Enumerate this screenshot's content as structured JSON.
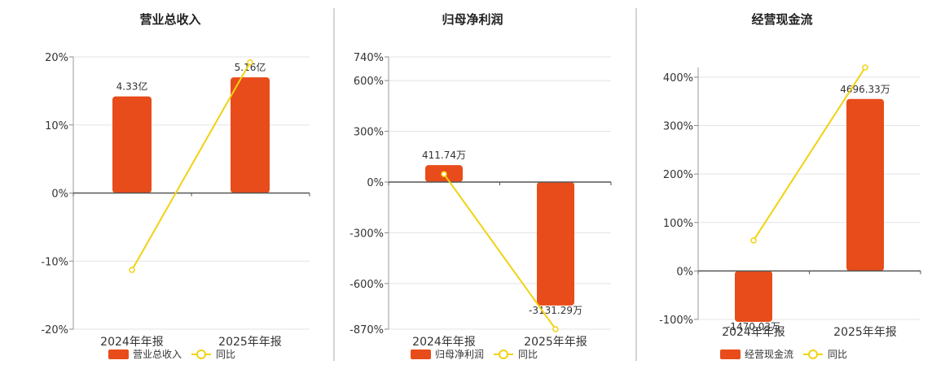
{
  "chart_data": [
    {
      "type": "bar",
      "title": "营业总收入",
      "categories": [
        "2024年年报",
        "2025年年报"
      ],
      "y_ticks": [
        "20%",
        "10%",
        "0%",
        "-10%",
        "-20%"
      ],
      "ylim": [
        -20,
        20
      ],
      "bar_axis": [
        -15.02,
        17.0
      ],
      "series": [
        {
          "name": "营业总收入",
          "kind": "bar",
          "values": [
            14.2,
            17.0
          ],
          "labels": [
            "4.33亿",
            "5.16亿"
          ],
          "color": "#e84c1a"
        },
        {
          "name": "同比",
          "kind": "line",
          "values": [
            -11.3,
            19.2
          ],
          "color": "#f2d211"
        }
      ],
      "legend_position": "bottom"
    },
    {
      "type": "bar",
      "title": "归母净利润",
      "categories": [
        "2024年年报",
        "2025年年报"
      ],
      "y_ticks": [
        "740%",
        "600%",
        "300%",
        "0%",
        "-300%",
        "-600%",
        "-870%"
      ],
      "ylim": [
        -870,
        740
      ],
      "series": [
        {
          "name": "归母净利润",
          "kind": "bar",
          "values": [
            100,
            -730
          ],
          "labels": [
            "411.74万",
            "-3131.29万"
          ],
          "color": "#e84c1a"
        },
        {
          "name": "同比",
          "kind": "line",
          "values": [
            47,
            -870
          ],
          "color": "#f2d211"
        }
      ],
      "legend_position": "bottom"
    },
    {
      "type": "bar",
      "title": "经营现金流",
      "categories": [
        "2024年年报",
        "2025年年报"
      ],
      "y_ticks": [
        "400%",
        "300%",
        "200%",
        "100%",
        "0%",
        "-100%"
      ],
      "ylim": [
        -100,
        420
      ],
      "series": [
        {
          "name": "经营现金流",
          "kind": "bar",
          "values": [
            -105,
            355
          ],
          "labels": [
            "-1470.03万",
            "4696.33万"
          ],
          "color": "#e84c1a"
        },
        {
          "name": "同比",
          "kind": "line",
          "values": [
            63,
            420
          ],
          "color": "#f2d211"
        }
      ],
      "legend_position": "bottom"
    }
  ]
}
